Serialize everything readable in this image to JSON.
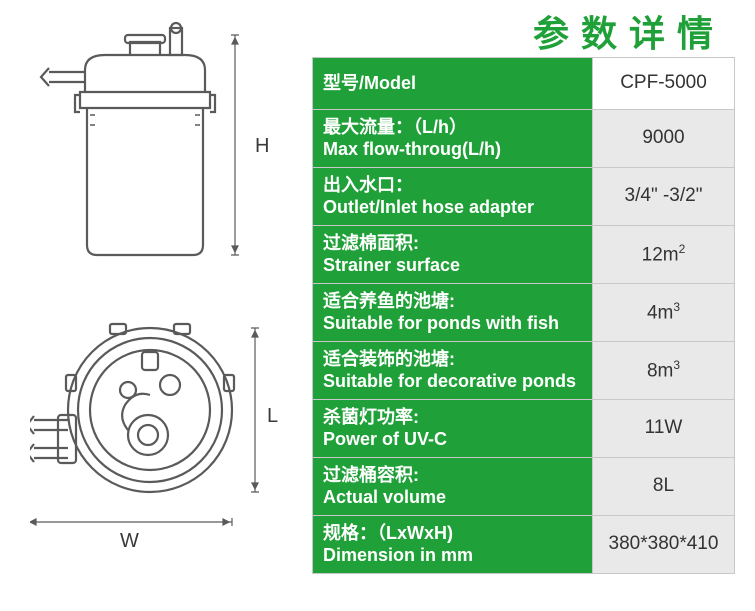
{
  "header": {
    "text": "参数详情",
    "color": "#1fa038"
  },
  "table": {
    "label_bg": "#1fa038",
    "value_bg": "#e9e9e9",
    "value_bg_alt": "#ffffff",
    "rows": [
      {
        "cn": "型号/Model",
        "en": "",
        "value": "CPF-5000",
        "single": true
      },
      {
        "cn": "最大流量：（L/h）",
        "en": "Max flow-throug(L/h)",
        "value": "9000"
      },
      {
        "cn": "出入水口：",
        "en": "Outlet/Inlet hose adapter",
        "value": "3/4\" -3/2\""
      },
      {
        "cn": "过滤棉面积:",
        "en": "Strainer surface",
        "value": "12m²"
      },
      {
        "cn": "适合养鱼的池塘:",
        "en": "Suitable for ponds with fish",
        "value": "4m³"
      },
      {
        "cn": "适合装饰的池塘:",
        "en": "Suitable for decorative ponds",
        "value": "8m³"
      },
      {
        "cn": "杀菌灯功率:",
        "en": "Power of UV-C",
        "value": "11W"
      },
      {
        "cn": "过滤桶容积:",
        "en": "Actual volume",
        "value": "8L"
      },
      {
        "cn": "规格：（LxWxH)",
        "en": "Dimension in mm",
        "value": "380*380*410"
      }
    ]
  },
  "diagram": {
    "stroke": "#5a5a5a",
    "labels": {
      "H": "H",
      "L": "L",
      "W": "W"
    }
  }
}
